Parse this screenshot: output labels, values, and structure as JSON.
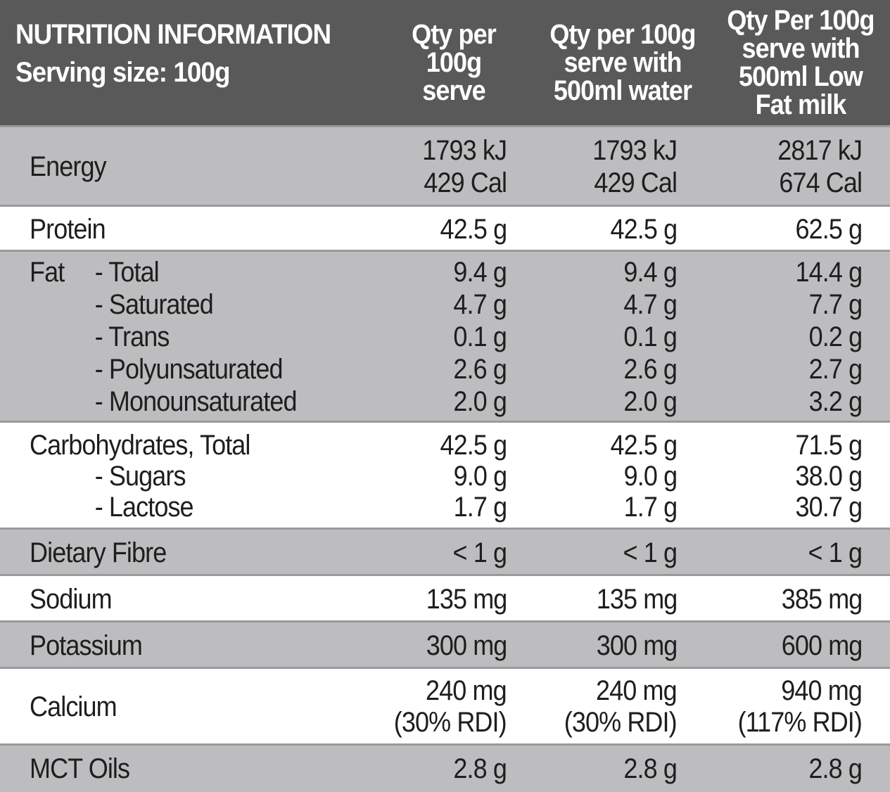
{
  "header": {
    "title": "NUTRITION INFORMATION",
    "serving": "Serving size: 100g",
    "columns": [
      [
        "Qty per",
        "100g",
        "serve"
      ],
      [
        "Qty per 100g",
        "serve with",
        "500ml water"
      ],
      [
        "Qty Per 100g",
        "serve with",
        "500ml Low",
        "Fat milk"
      ]
    ]
  },
  "colors": {
    "header_bg": "#595959",
    "shaded_row": "#bdbcbe",
    "plain_row": "#ffffff"
  },
  "rows": [
    {
      "shade": "g",
      "label": [
        {
          "main": "Energy",
          "sub": ""
        }
      ],
      "values": [
        [
          "1793 kJ",
          "429 Cal"
        ],
        [
          "1793 kJ",
          "429 Cal"
        ],
        [
          "2817 kJ",
          "674 Cal"
        ]
      ]
    },
    {
      "shade": "w",
      "label": [
        {
          "main": "Protein",
          "sub": ""
        }
      ],
      "values": [
        [
          "42.5 g"
        ],
        [
          "42.5 g"
        ],
        [
          "62.5 g"
        ]
      ]
    },
    {
      "shade": "g",
      "label": [
        {
          "main": "Fat",
          "sub": "- Total"
        },
        {
          "main": "",
          "sub": "- Saturated"
        },
        {
          "main": "",
          "sub": "- Trans"
        },
        {
          "main": "",
          "sub": "- Polyunsaturated"
        },
        {
          "main": "",
          "sub": "- Monounsaturated"
        }
      ],
      "values": [
        [
          "9.4 g",
          "4.7 g",
          "0.1 g",
          "2.6 g",
          "2.0 g"
        ],
        [
          "9.4 g",
          "4.7 g",
          "0.1 g",
          "2.6 g",
          "2.0 g"
        ],
        [
          "14.4 g",
          "7.7 g",
          "0.2 g",
          "2.7 g",
          "3.2 g"
        ]
      ]
    },
    {
      "shade": "w",
      "label": [
        {
          "main": "Carbohydrates, Total",
          "sub": ""
        },
        {
          "main": "",
          "sub": "- Sugars"
        },
        {
          "main": "",
          "sub": "- Lactose"
        }
      ],
      "values": [
        [
          "42.5 g",
          "9.0 g",
          "1.7 g"
        ],
        [
          "42.5 g",
          "9.0 g",
          "1.7 g"
        ],
        [
          "71.5 g",
          "38.0 g",
          "30.7 g"
        ]
      ]
    },
    {
      "shade": "g",
      "label": [
        {
          "main": "Dietary Fibre",
          "sub": ""
        }
      ],
      "values": [
        [
          "< 1 g"
        ],
        [
          "< 1 g"
        ],
        [
          "< 1 g"
        ]
      ]
    },
    {
      "shade": "w",
      "label": [
        {
          "main": "Sodium",
          "sub": ""
        }
      ],
      "values": [
        [
          "135 mg"
        ],
        [
          "135 mg"
        ],
        [
          "385 mg"
        ]
      ]
    },
    {
      "shade": "g",
      "label": [
        {
          "main": "Potassium",
          "sub": ""
        }
      ],
      "values": [
        [
          "300 mg"
        ],
        [
          "300 mg"
        ],
        [
          "600 mg"
        ]
      ]
    },
    {
      "shade": "w",
      "label": [
        {
          "main": "Calcium",
          "sub": ""
        }
      ],
      "values": [
        [
          "240 mg",
          "(30% RDI)"
        ],
        [
          "240 mg",
          "(30% RDI)"
        ],
        [
          "940 mg",
          "(117% RDI)"
        ]
      ]
    },
    {
      "shade": "g",
      "label": [
        {
          "main": "MCT Oils",
          "sub": ""
        }
      ],
      "values": [
        [
          "2.8 g"
        ],
        [
          "2.8 g"
        ],
        [
          "2.8 g"
        ]
      ]
    }
  ]
}
